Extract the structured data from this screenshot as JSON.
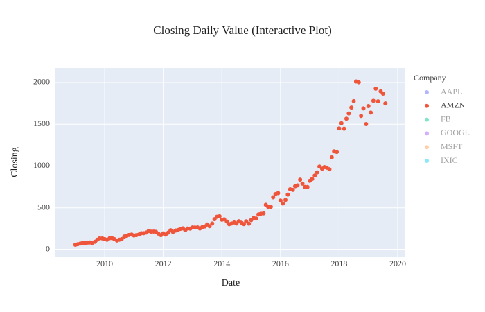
{
  "chart_data": {
    "type": "scatter",
    "title": "Closing Daily Value (Interactive Plot)",
    "x_label": "Date",
    "y_label": "Closing",
    "legend_title": "Company",
    "legend_position": "right",
    "grid": true,
    "xlim": [
      2008.32,
      2020.26
    ],
    "ylim": [
      -83,
      2174
    ],
    "xticks": [
      2010,
      2012,
      2014,
      2016,
      2018,
      2020
    ],
    "yticks": [
      0,
      500,
      1000,
      1500,
      2000
    ],
    "x": [
      2009,
      2009.08,
      2009.17,
      2009.25,
      2009.33,
      2009.42,
      2009.5,
      2009.58,
      2009.67,
      2009.75,
      2009.83,
      2009.92,
      2010,
      2010.08,
      2010.17,
      2010.25,
      2010.33,
      2010.42,
      2010.5,
      2010.58,
      2010.67,
      2010.75,
      2010.83,
      2010.92,
      2011,
      2011.08,
      2011.17,
      2011.25,
      2011.33,
      2011.42,
      2011.5,
      2011.58,
      2011.67,
      2011.75,
      2011.83,
      2011.92,
      2012,
      2012.08,
      2012.17,
      2012.25,
      2012.33,
      2012.42,
      2012.5,
      2012.58,
      2012.67,
      2012.75,
      2012.83,
      2012.92,
      2013,
      2013.08,
      2013.17,
      2013.25,
      2013.33,
      2013.42,
      2013.5,
      2013.58,
      2013.67,
      2013.75,
      2013.83,
      2013.92,
      2014,
      2014.08,
      2014.17,
      2014.25,
      2014.33,
      2014.42,
      2014.5,
      2014.58,
      2014.67,
      2014.75,
      2014.83,
      2014.92,
      2015,
      2015.08,
      2015.17,
      2015.25,
      2015.33,
      2015.42,
      2015.5,
      2015.58,
      2015.67,
      2015.75,
      2015.83,
      2015.92,
      2016,
      2016.08,
      2016.17,
      2016.25,
      2016.33,
      2016.42,
      2016.5,
      2016.58,
      2016.67,
      2016.75,
      2016.83,
      2016.92,
      2017,
      2017.08,
      2017.17,
      2017.25,
      2017.33,
      2017.42,
      2017.5,
      2017.58,
      2017.67,
      2017.75,
      2017.83,
      2017.92,
      2018,
      2018.08,
      2018.17,
      2018.25,
      2018.33,
      2018.42,
      2018.5,
      2018.58,
      2018.67,
      2018.75,
      2018.83,
      2018.92,
      2019,
      2019.08,
      2019.17,
      2019.25,
      2019.33,
      2019.42,
      2019.5,
      2019.58
    ],
    "series": [
      {
        "name": "AAPL",
        "color": "#636efa",
        "visible": "legendonly",
        "values": []
      },
      {
        "name": "AMZN",
        "color": "#EF553B",
        "visible": true,
        "values": [
          58,
          64,
          73,
          80,
          77,
          84,
          85,
          81,
          93,
          118,
          135,
          134,
          125,
          118,
          136,
          137,
          125,
          109,
          118,
          125,
          157,
          165,
          175,
          180,
          169,
          173,
          180,
          196,
          196,
          204,
          222,
          215,
          216,
          213,
          192,
          173,
          194,
          179,
          203,
          231,
          212,
          228,
          233,
          248,
          254,
          232,
          252,
          251,
          265,
          264,
          266,
          253,
          269,
          277,
          301,
          280,
          312,
          364,
          393,
          399,
          358,
          362,
          336,
          304,
          312,
          325,
          312,
          339,
          322,
          305,
          338,
          310,
          354,
          380,
          372,
          421,
          429,
          434,
          536,
          512,
          512,
          626,
          664,
          676,
          587,
          552,
          594,
          659,
          722,
          715,
          758,
          769,
          837,
          789,
          750,
          749,
          823,
          845,
          886,
          924,
          994,
          968,
          987,
          980,
          961,
          1105,
          1176,
          1169,
          1450,
          1512,
          1447,
          1566,
          1629,
          1700,
          1777,
          2012,
          2003,
          1599,
          1690,
          1502,
          1718,
          1640,
          1781,
          1926,
          1775,
          1894,
          1867,
          1750
        ]
      },
      {
        "name": "FB",
        "color": "#00cc96",
        "visible": "legendonly",
        "values": []
      },
      {
        "name": "GOOGL",
        "color": "#ab63fa",
        "visible": "legendonly",
        "values": []
      },
      {
        "name": "MSFT",
        "color": "#FFA15A",
        "visible": "legendonly",
        "values": []
      },
      {
        "name": "IXIC",
        "color": "#19d3f3",
        "visible": "legendonly",
        "values": []
      }
    ]
  }
}
